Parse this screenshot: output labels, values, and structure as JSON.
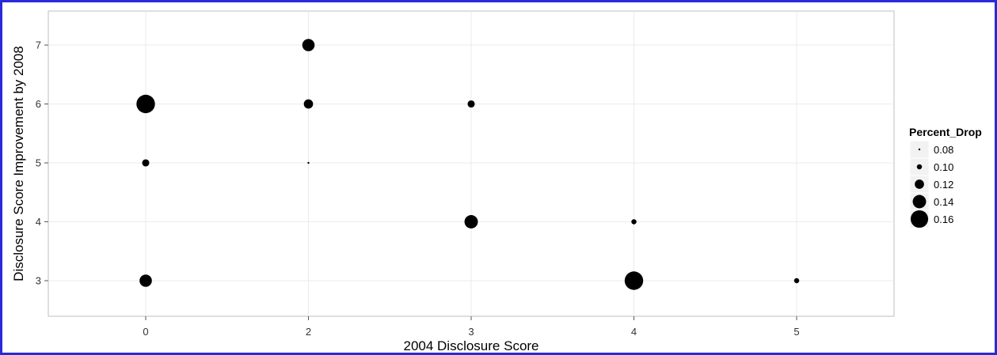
{
  "chart_data": {
    "type": "scatter",
    "xlabel": "2004 Disclosure Score",
    "ylabel": "Disclosure Score Improvement by 2008",
    "x_ticks": [
      "0",
      "2",
      "3",
      "4",
      "5"
    ],
    "y_ticks": [
      "3",
      "4",
      "5",
      "6",
      "7"
    ],
    "grid": true,
    "legend": {
      "title": "Percent_Drop",
      "position": "right",
      "entries": [
        {
          "label": "0.08",
          "value": 0.08
        },
        {
          "label": "0.10",
          "value": 0.1
        },
        {
          "label": "0.12",
          "value": 0.12
        },
        {
          "label": "0.14",
          "value": 0.14
        },
        {
          "label": "0.16",
          "value": 0.16
        }
      ]
    },
    "points": [
      {
        "x": "0",
        "y": 6,
        "size": 0.165
      },
      {
        "x": "0",
        "y": 5,
        "size": 0.11
      },
      {
        "x": "0",
        "y": 3,
        "size": 0.135
      },
      {
        "x": "2",
        "y": 7,
        "size": 0.135
      },
      {
        "x": "2",
        "y": 6,
        "size": 0.12
      },
      {
        "x": "2",
        "y": 5,
        "size": 0.08
      },
      {
        "x": "3",
        "y": 6,
        "size": 0.11
      },
      {
        "x": "3",
        "y": 4,
        "size": 0.14
      },
      {
        "x": "4",
        "y": 4,
        "size": 0.1
      },
      {
        "x": "4",
        "y": 3,
        "size": 0.165
      },
      {
        "x": "5",
        "y": 3,
        "size": 0.1
      }
    ],
    "colors": {
      "point": "#000000",
      "panel_border": "#bfbfbf",
      "grid": "#ebebeb",
      "frame": "#2a2ad8"
    }
  }
}
